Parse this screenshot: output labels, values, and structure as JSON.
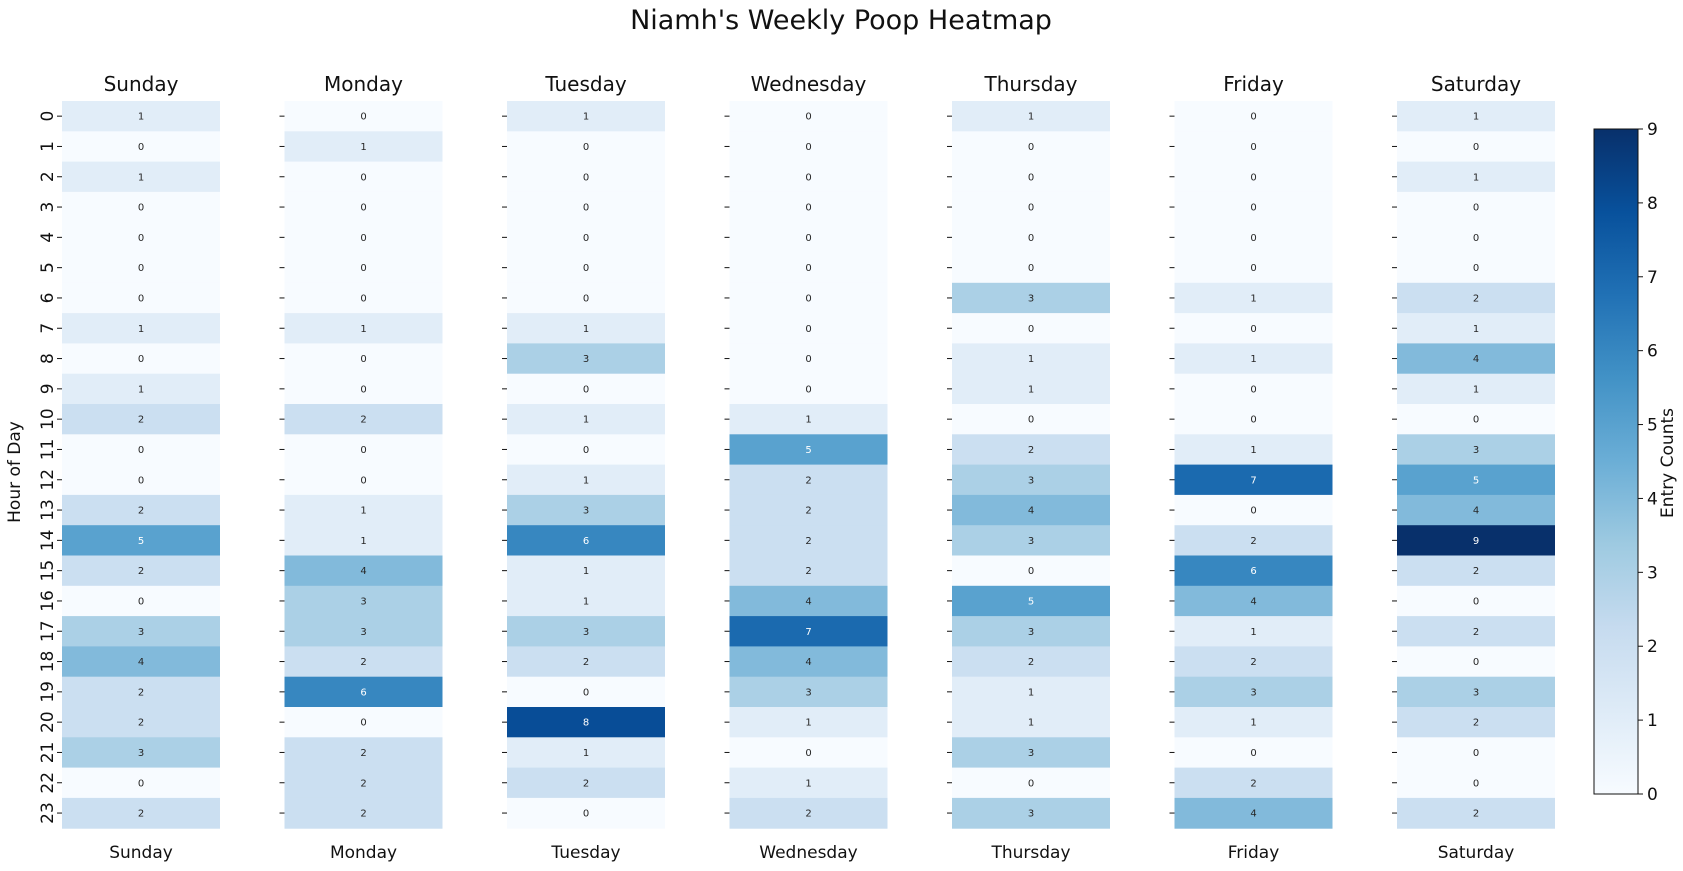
{
  "chart_data": {
    "type": "heatmap",
    "title": "Niamh's Weekly Poop Heatmap",
    "ylabel": "Hour of Day",
    "colorbar_label": "Entry Counts",
    "colorbar_ticks": [
      "0",
      "1",
      "2",
      "3",
      "4",
      "5",
      "6",
      "7",
      "8",
      "9"
    ],
    "vmin": 0,
    "vmax": 9,
    "colormap": "Blues",
    "hours": [
      "0",
      "1",
      "2",
      "3",
      "4",
      "5",
      "6",
      "7",
      "8",
      "9",
      "10",
      "11",
      "12",
      "13",
      "14",
      "15",
      "16",
      "17",
      "18",
      "19",
      "20",
      "21",
      "22",
      "23"
    ],
    "days": [
      {
        "name": "Sunday",
        "values": [
          1,
          0,
          1,
          0,
          0,
          0,
          0,
          1,
          0,
          1,
          2,
          0,
          0,
          2,
          5,
          2,
          0,
          3,
          4,
          2,
          2,
          3,
          0,
          2
        ]
      },
      {
        "name": "Monday",
        "values": [
          0,
          1,
          0,
          0,
          0,
          0,
          0,
          1,
          0,
          0,
          2,
          0,
          0,
          1,
          1,
          4,
          3,
          3,
          2,
          6,
          0,
          2,
          2,
          2
        ]
      },
      {
        "name": "Tuesday",
        "values": [
          1,
          0,
          0,
          0,
          0,
          0,
          0,
          1,
          3,
          0,
          1,
          0,
          1,
          3,
          6,
          1,
          1,
          3,
          2,
          0,
          8,
          1,
          2,
          0
        ]
      },
      {
        "name": "Wednesday",
        "values": [
          0,
          0,
          0,
          0,
          0,
          0,
          0,
          0,
          0,
          0,
          1,
          5,
          2,
          2,
          2,
          2,
          4,
          7,
          4,
          3,
          1,
          0,
          1,
          2
        ]
      },
      {
        "name": "Thursday",
        "values": [
          1,
          0,
          0,
          0,
          0,
          0,
          3,
          0,
          1,
          1,
          0,
          2,
          3,
          4,
          3,
          0,
          5,
          3,
          2,
          1,
          1,
          3,
          0,
          3
        ]
      },
      {
        "name": "Friday",
        "values": [
          0,
          0,
          0,
          0,
          0,
          0,
          1,
          0,
          1,
          0,
          0,
          1,
          7,
          0,
          2,
          6,
          4,
          1,
          2,
          3,
          1,
          0,
          2,
          4
        ]
      },
      {
        "name": "Saturday",
        "values": [
          1,
          0,
          1,
          0,
          0,
          0,
          2,
          1,
          4,
          1,
          0,
          3,
          5,
          4,
          9,
          2,
          0,
          2,
          0,
          3,
          2,
          0,
          0,
          2
        ]
      }
    ]
  }
}
